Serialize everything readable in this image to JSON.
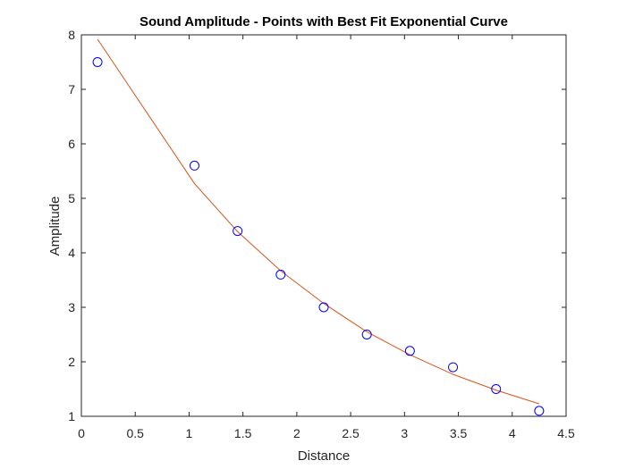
{
  "chart_data": {
    "type": "scatter",
    "title": "Sound Amplitude - Points with Best Fit Exponential Curve",
    "xlabel": "Distance",
    "ylabel": "Amplitude",
    "xlim": [
      0,
      4.5
    ],
    "ylim": [
      1,
      8
    ],
    "xticks": [
      "0",
      "0.5",
      "1",
      "1.5",
      "2",
      "2.5",
      "3",
      "3.5",
      "4",
      "4.5"
    ],
    "yticks": [
      "1",
      "2",
      "3",
      "4",
      "5",
      "6",
      "7",
      "8"
    ],
    "grid": false,
    "legend": "none",
    "series": [
      {
        "kind": "scatter",
        "marker": "open-circle",
        "color": "#0000ff",
        "x": [
          0.15,
          1.05,
          1.45,
          1.85,
          2.25,
          2.65,
          3.05,
          3.45,
          3.85,
          4.25
        ],
        "y": [
          7.5,
          5.6,
          4.4,
          3.6,
          3.0,
          2.5,
          2.2,
          1.9,
          1.5,
          1.1
        ]
      },
      {
        "kind": "line",
        "color": "#d95319",
        "x": [
          0.15,
          1.05,
          1.45,
          1.85,
          2.25,
          2.65,
          3.05,
          3.45,
          3.85,
          4.25
        ],
        "y": [
          7.92,
          5.27,
          4.39,
          3.67,
          3.07,
          2.55,
          2.13,
          1.77,
          1.48,
          1.23
        ]
      }
    ]
  }
}
